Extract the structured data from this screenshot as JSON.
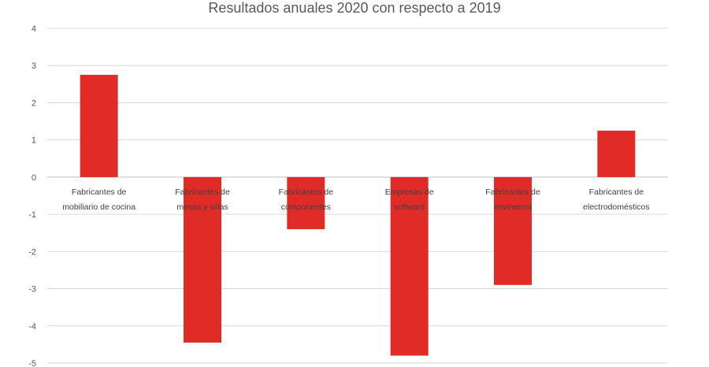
{
  "chart_data": {
    "type": "bar",
    "title": "Resultados anuales 2020 con respecto a 2019",
    "xlabel": "",
    "ylabel": "",
    "categories": [
      [
        "Fabricantes de",
        "mobiliario de cocina"
      ],
      [
        "Fabricantes de",
        "mesas y sillas"
      ],
      [
        "Fabricantes de",
        "componentes"
      ],
      [
        "Empresas de",
        "software"
      ],
      [
        "Fabricantes de",
        "envimeros"
      ],
      [
        "Fabricantes de",
        "electrodomésticos"
      ]
    ],
    "values": [
      2.75,
      -4.45,
      -1.4,
      -4.8,
      -2.9,
      1.25
    ],
    "ylim": [
      -5,
      4
    ],
    "yticks": [
      4,
      3,
      2,
      1,
      0,
      -1,
      -2,
      -3,
      -4,
      -5
    ],
    "grid": true,
    "legend": "none",
    "bar_color": "#e02b27"
  }
}
